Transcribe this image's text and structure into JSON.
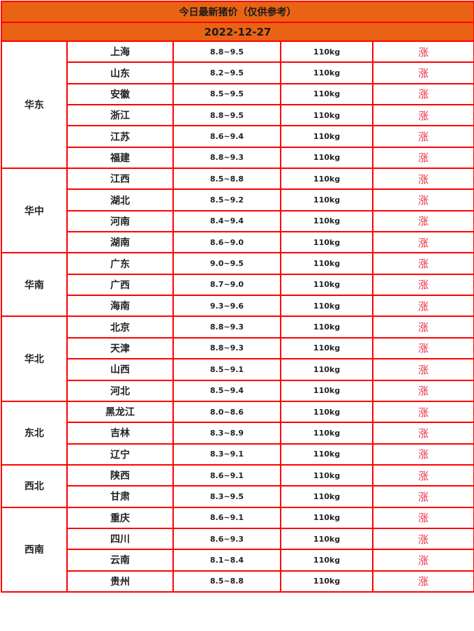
{
  "title": "今日最新猪价（仅供参考）",
  "date": "2022-12-27",
  "colors": {
    "header_bg": "#ea6314",
    "border": "#ff0000",
    "trend": "#e8334a"
  },
  "regions": [
    {
      "name": "华东",
      "rows": [
        {
          "province": "上海",
          "price": "8.8~9.5",
          "weight": "110kg",
          "trend": "涨"
        },
        {
          "province": "山东",
          "price": "8.2~9.5",
          "weight": "110kg",
          "trend": "涨"
        },
        {
          "province": "安徽",
          "price": "8.5~9.5",
          "weight": "110kg",
          "trend": "涨"
        },
        {
          "province": "浙江",
          "price": "8.8~9.5",
          "weight": "110kg",
          "trend": "涨"
        },
        {
          "province": "江苏",
          "price": "8.6~9.4",
          "weight": "110kg",
          "trend": "涨"
        },
        {
          "province": "福建",
          "price": "8.8~9.3",
          "weight": "110kg",
          "trend": "涨"
        }
      ]
    },
    {
      "name": "华中",
      "rows": [
        {
          "province": "江西",
          "price": "8.5~8.8",
          "weight": "110kg",
          "trend": "涨"
        },
        {
          "province": "湖北",
          "price": "8.5~9.2",
          "weight": "110kg",
          "trend": "涨"
        },
        {
          "province": "河南",
          "price": "8.4~9.4",
          "weight": "110kg",
          "trend": "涨"
        },
        {
          "province": "湖南",
          "price": "8.6~9.0",
          "weight": "110kg",
          "trend": "涨"
        }
      ]
    },
    {
      "name": "华南",
      "rows": [
        {
          "province": "广东",
          "price": "9.0~9.5",
          "weight": "110kg",
          "trend": "涨"
        },
        {
          "province": "广西",
          "price": "8.7~9.0",
          "weight": "110kg",
          "trend": "涨"
        },
        {
          "province": "海南",
          "price": "9.3~9.6",
          "weight": "110kg",
          "trend": "涨"
        }
      ]
    },
    {
      "name": "华北",
      "rows": [
        {
          "province": "北京",
          "price": "8.8~9.3",
          "weight": "110kg",
          "trend": "涨"
        },
        {
          "province": "天津",
          "price": "8.8~9.3",
          "weight": "110kg",
          "trend": "涨"
        },
        {
          "province": "山西",
          "price": "8.5~9.1",
          "weight": "110kg",
          "trend": "涨"
        },
        {
          "province": "河北",
          "price": "8.5~9.4",
          "weight": "110kg",
          "trend": "涨"
        }
      ]
    },
    {
      "name": "东北",
      "rows": [
        {
          "province": "黑龙江",
          "price": "8.0~8.6",
          "weight": "110kg",
          "trend": "涨"
        },
        {
          "province": "吉林",
          "price": "8.3~8.9",
          "weight": "110kg",
          "trend": "涨"
        },
        {
          "province": "辽宁",
          "price": "8.3~9.1",
          "weight": "110kg",
          "trend": "涨"
        }
      ]
    },
    {
      "name": "西北",
      "rows": [
        {
          "province": "陕西",
          "price": "8.6~9.1",
          "weight": "110kg",
          "trend": "涨"
        },
        {
          "province": "甘肃",
          "price": "8.3~9.5",
          "weight": "110kg",
          "trend": "涨"
        }
      ]
    },
    {
      "name": "西南",
      "rows": [
        {
          "province": "重庆",
          "price": "8.6~9.1",
          "weight": "110kg",
          "trend": "涨"
        },
        {
          "province": "四川",
          "price": "8.6~9.3",
          "weight": "110kg",
          "trend": "涨"
        },
        {
          "province": "云南",
          "price": "8.1~8.4",
          "weight": "110kg",
          "trend": "涨"
        },
        {
          "province": "贵州",
          "price": "8.5~8.8",
          "weight": "110kg",
          "trend": "涨"
        }
      ]
    }
  ]
}
